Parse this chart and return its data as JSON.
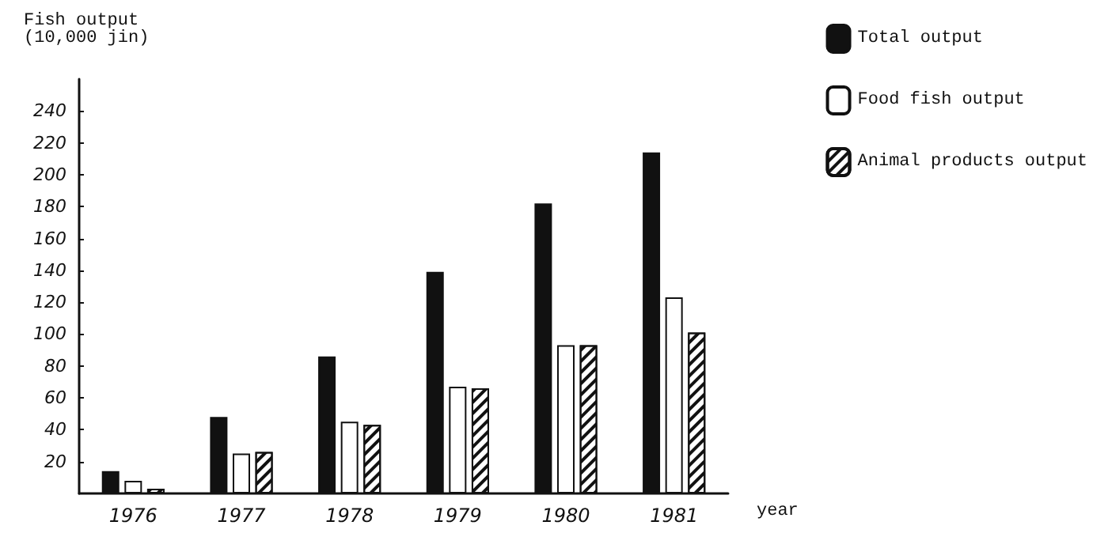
{
  "chart_data": {
    "type": "bar",
    "ylabel": "Fish output\n(10,000 jin)",
    "xlabel": "year",
    "categories": [
      "1976",
      "1977",
      "1978",
      "1979",
      "1980",
      "1981"
    ],
    "series": [
      {
        "name": "Total output",
        "color": "#111111",
        "values": [
          14,
          48,
          86,
          139,
          182,
          214
        ]
      },
      {
        "name": "Food fish output",
        "color": "#ffffff",
        "values": [
          8,
          25,
          45,
          67,
          93,
          123
        ]
      },
      {
        "name": "Animal products output",
        "color": "#ffffff",
        "values": [
          3,
          26,
          43,
          66,
          93,
          101
        ]
      }
    ],
    "ylim": [
      0,
      260
    ],
    "yticks": [
      20,
      40,
      60,
      80,
      100,
      120,
      140,
      160,
      180,
      200,
      220,
      240
    ],
    "grid": false,
    "legend": "top right"
  }
}
